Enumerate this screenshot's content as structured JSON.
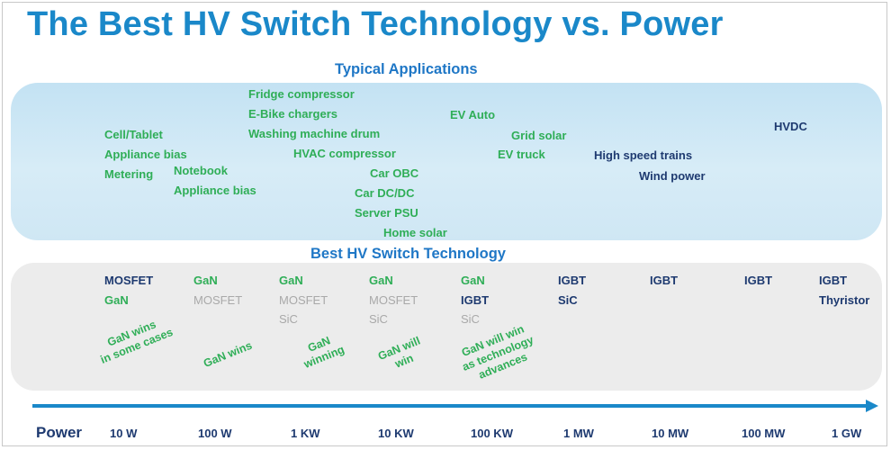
{
  "title": "The Best HV Switch Technology vs. Power",
  "apps_label": "Typical Applications",
  "tech_label": "Best HV Switch Technology",
  "applications": [
    {
      "text": "Cell/Tablet",
      "color": "green"
    },
    {
      "text": "Appliance bias",
      "color": "green"
    },
    {
      "text": "Metering",
      "color": "green"
    },
    {
      "text": "Notebook",
      "color": "green"
    },
    {
      "text": "Appliance bias",
      "color": "green"
    },
    {
      "text": "Fridge compressor",
      "color": "green"
    },
    {
      "text": "E-Bike chargers",
      "color": "green"
    },
    {
      "text": "Washing machine drum",
      "color": "green"
    },
    {
      "text": "HVAC compressor",
      "color": "green"
    },
    {
      "text": "Car OBC",
      "color": "green"
    },
    {
      "text": "Car DC/DC",
      "color": "green"
    },
    {
      "text": "Server PSU",
      "color": "green"
    },
    {
      "text": "Home solar",
      "color": "green"
    },
    {
      "text": "EV Auto",
      "color": "green"
    },
    {
      "text": "Grid solar",
      "color": "green"
    },
    {
      "text": "EV truck",
      "color": "green"
    },
    {
      "text": "High speed trains",
      "color": "navy"
    },
    {
      "text": "Wind power",
      "color": "navy"
    },
    {
      "text": "HVDC",
      "color": "navy"
    }
  ],
  "tech_columns": [
    {
      "lines": [
        {
          "text": "MOSFET",
          "color": "navy"
        },
        {
          "text": "GaN",
          "color": "green"
        }
      ],
      "note": [
        "GaN wins",
        "in some cases"
      ]
    },
    {
      "lines": [
        {
          "text": "GaN",
          "color": "green"
        },
        {
          "text": "MOSFET",
          "color": "gray"
        }
      ],
      "note": [
        "GaN wins"
      ]
    },
    {
      "lines": [
        {
          "text": "GaN",
          "color": "green"
        },
        {
          "text": "MOSFET",
          "color": "gray"
        },
        {
          "text": "SiC",
          "color": "gray"
        }
      ],
      "note": [
        "GaN",
        "winning"
      ]
    },
    {
      "lines": [
        {
          "text": "GaN",
          "color": "green"
        },
        {
          "text": "MOSFET",
          "color": "gray"
        },
        {
          "text": "SiC",
          "color": "gray"
        }
      ],
      "note": [
        "GaN will",
        "win"
      ]
    },
    {
      "lines": [
        {
          "text": "GaN",
          "color": "green"
        },
        {
          "text": "IGBT",
          "color": "navy"
        },
        {
          "text": "SiC",
          "color": "gray"
        }
      ],
      "note": [
        "GaN will win",
        "as technology",
        "advances"
      ]
    },
    {
      "lines": [
        {
          "text": "IGBT",
          "color": "navy"
        },
        {
          "text": "SiC",
          "color": "navy"
        }
      ],
      "note": []
    },
    {
      "lines": [
        {
          "text": "IGBT",
          "color": "navy"
        }
      ],
      "note": []
    },
    {
      "lines": [
        {
          "text": "IGBT",
          "color": "navy"
        }
      ],
      "note": []
    },
    {
      "lines": [
        {
          "text": "IGBT",
          "color": "navy"
        },
        {
          "text": "Thyristor",
          "color": "navy"
        }
      ],
      "note": []
    }
  ],
  "axis_label": "Power",
  "power_ticks": [
    "10 W",
    "100 W",
    "1 KW",
    "10 KW",
    "100 KW",
    "1 MW",
    "10 MW",
    "100 MW",
    "1 GW"
  ],
  "colors": {
    "title": "#1a88c9",
    "green": "#2fae57",
    "navy": "#1e3a70",
    "gray": "#a9a9a9",
    "axis": "#1a88c9"
  }
}
